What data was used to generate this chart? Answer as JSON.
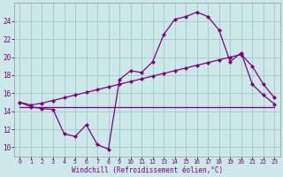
{
  "line1_x": [
    0,
    1,
    2,
    3,
    4,
    5,
    6,
    7,
    8,
    9,
    10,
    11,
    12,
    13,
    14,
    15,
    16,
    17,
    18,
    19,
    20,
    21,
    22,
    23
  ],
  "line1_y": [
    15.0,
    14.5,
    14.3,
    14.2,
    11.5,
    11.2,
    12.5,
    10.3,
    9.8,
    17.5,
    18.5,
    18.3,
    19.5,
    22.5,
    24.2,
    24.5,
    25.0,
    24.5,
    23.0,
    19.5,
    20.5,
    17.0,
    15.8,
    14.8
  ],
  "line2_x": [
    0,
    1,
    2,
    3,
    4,
    5,
    6,
    7,
    8,
    9,
    10,
    11,
    12,
    13,
    14,
    15,
    16,
    17,
    18,
    19,
    20,
    21,
    22,
    23
  ],
  "line2_y": [
    15.0,
    14.7,
    14.9,
    15.2,
    15.5,
    15.8,
    16.1,
    16.4,
    16.7,
    17.0,
    17.3,
    17.6,
    17.9,
    18.2,
    18.5,
    18.8,
    19.1,
    19.4,
    19.7,
    20.0,
    20.3,
    19.0,
    17.0,
    15.5
  ],
  "line3_x": [
    0,
    1,
    2,
    3,
    9,
    19,
    22,
    23
  ],
  "line3_y": [
    14.5,
    14.5,
    14.5,
    14.5,
    14.5,
    14.5,
    14.5,
    14.5
  ],
  "line_color": "#800080",
  "bg_color": "#cce8e8",
  "grid_color": "#aacccc",
  "xlabel": "Windchill (Refroidissement éolien,°C)",
  "xlim": [
    -0.5,
    23.5
  ],
  "ylim": [
    9,
    26
  ],
  "yticks": [
    10,
    12,
    14,
    16,
    18,
    20,
    22,
    24
  ],
  "xticks": [
    0,
    1,
    2,
    3,
    4,
    5,
    6,
    7,
    8,
    9,
    10,
    11,
    12,
    13,
    14,
    15,
    16,
    17,
    18,
    19,
    20,
    21,
    22,
    23
  ],
  "marker": "D",
  "markersize": 2.5
}
